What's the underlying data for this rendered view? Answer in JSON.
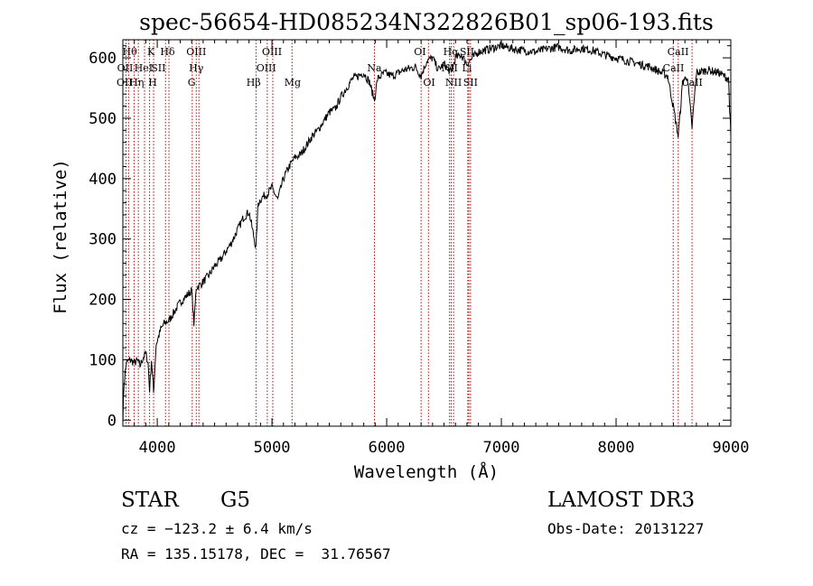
{
  "chart_data": {
    "type": "line",
    "title": "spec-56654-HD085234N322826B01_sp06-193.fits",
    "xlabel": "Wavelength (Å)",
    "ylabel": "Flux (relative)",
    "xlim": [
      3700,
      9000
    ],
    "ylim": [
      -10,
      630
    ],
    "xticks": [
      4000,
      5000,
      6000,
      7000,
      8000,
      9000
    ],
    "yticks": [
      0,
      100,
      200,
      300,
      400,
      500,
      600
    ],
    "series": [
      {
        "name": "spectrum",
        "x": [
          3700,
          3710,
          3730,
          3760,
          3800,
          3830,
          3850,
          3880,
          3900,
          3920,
          3933,
          3950,
          3968,
          3990,
          4030,
          4060,
          4102,
          4150,
          4200,
          4250,
          4300,
          4320,
          4340,
          4380,
          4450,
          4500,
          4550,
          4600,
          4650,
          4700,
          4750,
          4800,
          4861,
          4880,
          4920,
          4960,
          5000,
          5050,
          5100,
          5150,
          5200,
          5250,
          5300,
          5350,
          5400,
          5450,
          5500,
          5550,
          5600,
          5650,
          5700,
          5750,
          5800,
          5850,
          5893,
          5920,
          5980,
          6050,
          6150,
          6250,
          6300,
          6350,
          6400,
          6450,
          6500,
          6563,
          6600,
          6650,
          6700,
          6800,
          6900,
          7000,
          7100,
          7200,
          7300,
          7400,
          7500,
          7600,
          7700,
          7800,
          7900,
          8000,
          8100,
          8200,
          8300,
          8400,
          8450,
          8498,
          8542,
          8580,
          8620,
          8662,
          8700,
          8800,
          8900,
          8980,
          9000
        ],
        "values": [
          0,
          60,
          95,
          100,
          95,
          98,
          90,
          105,
          110,
          95,
          50,
          100,
          45,
          125,
          150,
          160,
          165,
          180,
          195,
          205,
          215,
          160,
          220,
          225,
          240,
          255,
          265,
          280,
          295,
          315,
          335,
          345,
          285,
          360,
          370,
          375,
          385,
          365,
          400,
          420,
          435,
          440,
          455,
          470,
          480,
          495,
          510,
          515,
          535,
          550,
          565,
          570,
          575,
          560,
          530,
          565,
          575,
          570,
          580,
          585,
          570,
          595,
          600,
          580,
          590,
          575,
          600,
          605,
          590,
          610,
          615,
          620,
          615,
          612,
          610,
          615,
          618,
          612,
          616,
          612,
          605,
          600,
          595,
          590,
          585,
          575,
          570,
          520,
          470,
          560,
          570,
          485,
          575,
          580,
          575,
          565,
          470
        ]
      }
    ],
    "lines": [
      {
        "x": 3728,
        "top": "OII"
      },
      {
        "x": 3750,
        "top": "Hθ"
      },
      {
        "x": 3798,
        "top": "Hη"
      },
      {
        "x": 3835,
        "top": "Hη"
      },
      {
        "x": 3889,
        "top": "HeI"
      },
      {
        "x": 3933,
        "top": "K"
      },
      {
        "x": 3968,
        "top": "H"
      },
      {
        "x": 4072,
        "top": "SII"
      },
      {
        "x": 4102,
        "top": "Hδ"
      },
      {
        "x": 4305,
        "top": "G"
      },
      {
        "x": 4340,
        "top": "Hγ"
      },
      {
        "x": 4363,
        "top": "OIII"
      },
      {
        "x": 4861,
        "top": "Hβ"
      },
      {
        "x": 4959,
        "top": "OIII"
      },
      {
        "x": 5007,
        "top": "OIII"
      },
      {
        "x": 5175,
        "top": "Mg"
      },
      {
        "x": 5893,
        "top": "Na"
      },
      {
        "x": 6300,
        "top": "OI"
      },
      {
        "x": 6364,
        "top": "OI"
      },
      {
        "x": 6548,
        "top": "NII"
      },
      {
        "x": 6563,
        "top": "Hα"
      },
      {
        "x": 6583,
        "top": "NII"
      },
      {
        "x": 6707,
        "top": "Li"
      },
      {
        "x": 6716,
        "top": "SII"
      },
      {
        "x": 6731,
        "top": "SII"
      },
      {
        "x": 8498,
        "top": "CaII"
      },
      {
        "x": 8542,
        "top": "CaII"
      },
      {
        "x": 8662,
        "top": "CaII"
      }
    ],
    "line_labels": [
      {
        "text": "Hθ",
        "x": 3760,
        "row": 1
      },
      {
        "text": "K",
        "x": 3945,
        "row": 1
      },
      {
        "text": "Hδ",
        "x": 4090,
        "row": 1
      },
      {
        "text": "OIII",
        "x": 4340,
        "row": 1
      },
      {
        "text": "OIII",
        "x": 5000,
        "row": 1
      },
      {
        "text": "OI",
        "x": 6290,
        "row": 1
      },
      {
        "text": "Hα",
        "x": 6560,
        "row": 1
      },
      {
        "text": "SII",
        "x": 6700,
        "row": 1
      },
      {
        "text": "CaII",
        "x": 8540,
        "row": 1
      },
      {
        "text": "OII",
        "x": 3720,
        "row": 2
      },
      {
        "text": "HeI",
        "x": 3880,
        "row": 2
      },
      {
        "text": "SII",
        "x": 4010,
        "row": 2
      },
      {
        "text": "Hγ",
        "x": 4340,
        "row": 2
      },
      {
        "text": "OIII",
        "x": 4950,
        "row": 2
      },
      {
        "text": "Na",
        "x": 5893,
        "row": 2
      },
      {
        "text": "NII",
        "x": 6548,
        "row": 2
      },
      {
        "text": "Li",
        "x": 6700,
        "row": 2
      },
      {
        "text": "CaII",
        "x": 8500,
        "row": 2
      },
      {
        "text": "OII",
        "x": 3715,
        "row": 3
      },
      {
        "text": "Hη",
        "x": 3820,
        "row": 3
      },
      {
        "text": "H",
        "x": 3960,
        "row": 3
      },
      {
        "text": "G",
        "x": 4300,
        "row": 3
      },
      {
        "text": "Hβ",
        "x": 4840,
        "row": 3
      },
      {
        "text": "Mg",
        "x": 5180,
        "row": 3
      },
      {
        "text": "OI",
        "x": 6370,
        "row": 3
      },
      {
        "text": "NII",
        "x": 6583,
        "row": 3
      },
      {
        "text": "SII",
        "x": 6731,
        "row": 3
      },
      {
        "text": "CaII",
        "x": 8662,
        "row": 3
      }
    ],
    "colors": {
      "spectrum": "#000000",
      "lines": "#cc0000"
    }
  },
  "info": {
    "object_class": "STAR",
    "subclass": "G5",
    "survey": "LAMOST DR3",
    "cz": "cz = −123.2 ± 6.4 km/s",
    "obs_date": "Obs-Date: 20131227",
    "coords": "RA = 135.15178, DEC =  31.76567"
  }
}
